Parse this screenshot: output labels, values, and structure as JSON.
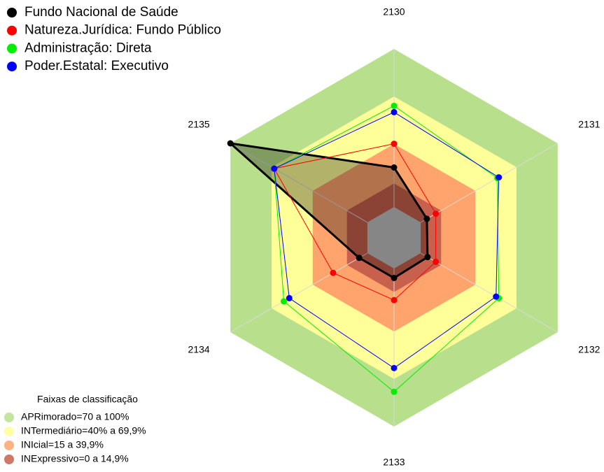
{
  "chart_data": {
    "type": "radar",
    "categories": [
      "2130",
      "2131",
      "2132",
      "2133",
      "2134",
      "2135"
    ],
    "rlim": [
      0,
      100
    ],
    "series": [
      {
        "name": "Fundo Nacional de Saúde",
        "color": "#000000",
        "values": [
          25,
          4.5,
          5,
          6,
          6,
          100
        ]
      },
      {
        "name": "Natureza.Jurídica: Fundo Público",
        "color": "#ff0000",
        "values": [
          40,
          11,
          11,
          20,
          25,
          68
        ]
      },
      {
        "name": "Administração: Direta",
        "color": "#00ee00",
        "values": [
          64,
          56,
          57,
          78,
          61,
          68
        ]
      },
      {
        "name": "Poder.Estatal: Executivo",
        "color": "#0000ff",
        "values": [
          60,
          57,
          55,
          63,
          57,
          68
        ]
      }
    ],
    "bands_title": "Faixas de classificação",
    "bands": [
      {
        "label": "APRimorado=70 a 100%",
        "to": 100,
        "color": "#b8e08c"
      },
      {
        "label": "INTermediário=40% a 69,9%",
        "to": 69.9,
        "color": "#ffff99"
      },
      {
        "label": "INIcial=15 a 39,9%",
        "to": 39.9,
        "color": "#ffa46c"
      },
      {
        "label": "INExpressivo=0 a 14,9%",
        "to": 14.9,
        "color": "#c8604e"
      }
    ]
  }
}
